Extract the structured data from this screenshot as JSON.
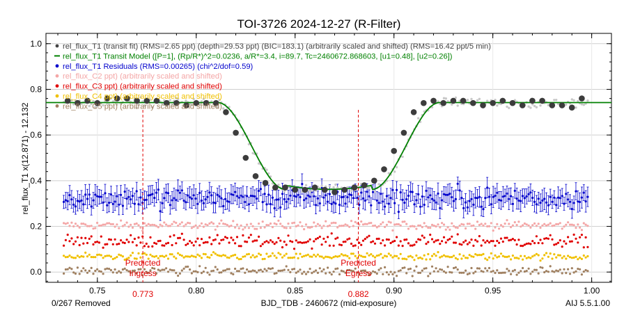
{
  "chart_data": {
    "type": "scatter",
    "title": "TOI-3726 2024-12-27 (R-Filter)",
    "xlabel": "BJD_TDB - 2460672 (mid-exposure)",
    "ylabel": "rel_flux_T1 x(12.871) - 12.132",
    "xlim": [
      0.724,
      1.01
    ],
    "ylim": [
      -0.045,
      1.045
    ],
    "xticks": [
      "0.75",
      "0.80",
      "0.85",
      "0.90",
      "0.95",
      "1.00"
    ],
    "yticks": [
      "0.0",
      "0.2",
      "0.4",
      "0.6",
      "0.8",
      "1.0"
    ],
    "grid": true,
    "legend_position": "top-left",
    "footer_left": "0/267 Removed",
    "footer_right": "AIJ 5.5.1.00",
    "legend": [
      {
        "label": "rel_flux_T1 (transit fit) (RMS=2.65 ppt) (depth=29.53 ppt) (BIC=183.1) (arbitrarily scaled and shifted) (RMS=16.42 ppt/5 min)",
        "color": "#444444",
        "marker": "dot"
      },
      {
        "label": "rel_flux_T1 Transit Model ([P=1], (Rp/R*)^2=0.0236, a/R*=3.4, i=89.7, Tc=2460672.868603, [u1=0.48], [u2=0.26])",
        "color": "#008000",
        "marker": "line"
      },
      {
        "label": "rel_flux_T1 Residuals (RMS=0.00265) (chi^2/dof=0.59)",
        "color": "#0000cc",
        "marker": "dot"
      },
      {
        "label": "rel_flux_C2 ppt) (arbitrarily scaled and shifted)",
        "color": "#f4a6a6",
        "marker": "dot"
      },
      {
        "label": "rel_flux_C3 ppt) (arbitrarily scaled and shifted)",
        "color": "#e00000",
        "marker": "dot"
      },
      {
        "label": "rel_flux_C4 ppt) (arbitrarily scaled and shifted)",
        "color": "#f0c000",
        "marker": "dot"
      },
      {
        "label": "rel_flux_C5 ppt) (arbitrarily scaled and shifted)",
        "color": "#a08060",
        "marker": "dot"
      }
    ],
    "predicted_ingress": {
      "x": 0.773,
      "label_line1": "Predicted",
      "label_line2": "Ingress",
      "value_label": "0.773",
      "color": "#e00000"
    },
    "predicted_egress": {
      "x": 0.882,
      "label_line1": "Predicted",
      "label_line2": "Egress",
      "value_label": "0.882",
      "color": "#e00000"
    },
    "transit_model": {
      "baseline": 0.742,
      "bottom": 0.362,
      "ingress_start": 0.811,
      "ingress_end": 0.845,
      "egress_start": 0.889,
      "egress_end": 0.923,
      "x_start": 0.724,
      "x_end": 1.01
    },
    "binned_points": {
      "x": [
        0.735,
        0.74,
        0.745,
        0.75,
        0.755,
        0.76,
        0.765,
        0.77,
        0.775,
        0.78,
        0.785,
        0.79,
        0.795,
        0.8,
        0.805,
        0.81,
        0.815,
        0.82,
        0.825,
        0.83,
        0.835,
        0.84,
        0.845,
        0.85,
        0.855,
        0.86,
        0.865,
        0.87,
        0.875,
        0.88,
        0.885,
        0.89,
        0.895,
        0.9,
        0.905,
        0.91,
        0.915,
        0.92,
        0.925,
        0.93,
        0.935,
        0.94,
        0.945,
        0.95,
        0.955,
        0.96,
        0.965,
        0.97,
        0.975,
        0.98,
        0.985,
        0.99,
        0.995
      ],
      "y": [
        0.75,
        0.74,
        0.75,
        0.74,
        0.76,
        0.76,
        0.76,
        0.75,
        0.75,
        0.75,
        0.74,
        0.74,
        0.73,
        0.74,
        0.74,
        0.74,
        0.7,
        0.61,
        0.5,
        0.42,
        0.39,
        0.37,
        0.37,
        0.36,
        0.36,
        0.37,
        0.36,
        0.35,
        0.36,
        0.37,
        0.38,
        0.4,
        0.45,
        0.53,
        0.61,
        0.7,
        0.74,
        0.75,
        0.74,
        0.75,
        0.75,
        0.74,
        0.73,
        0.74,
        0.75,
        0.74,
        0.73,
        0.75,
        0.75,
        0.73,
        0.73,
        0.72,
        0.76
      ]
    },
    "series_noise": [
      {
        "name": "rel_flux_T1 (transit fit)",
        "color": "#c8c8c8",
        "offset": 0.0,
        "sd": 0.014
      },
      {
        "name": "rel_flux_T1 Residuals",
        "color": "#0000cc",
        "level": 0.325,
        "sd": 0.034,
        "err": 0.038
      },
      {
        "name": "rel_flux_C2",
        "color": "#f4a6a6",
        "level": 0.205,
        "sd": 0.013
      },
      {
        "name": "rel_flux_C3",
        "color": "#e00000",
        "level": 0.135,
        "sd": 0.019
      },
      {
        "name": "rel_flux_C4",
        "color": "#f0c000",
        "level": 0.068,
        "sd": 0.011
      },
      {
        "name": "rel_flux_C5",
        "color": "#a08060",
        "level": 0.005,
        "sd": 0.013
      }
    ],
    "unbinned_x_range": [
      0.733,
      0.998
    ],
    "unbinned_count": 267
  }
}
